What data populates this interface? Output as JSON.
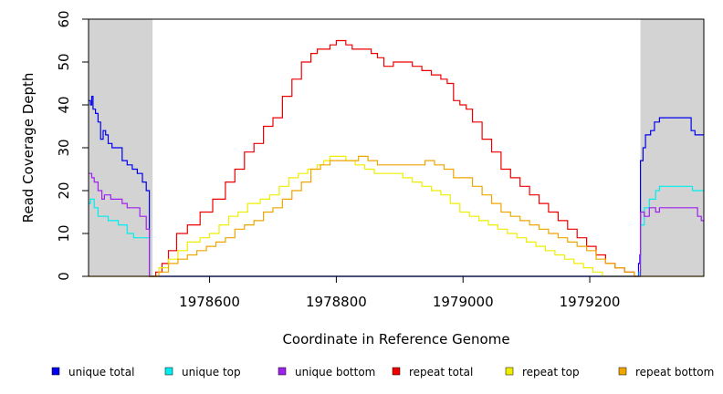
{
  "chart_data": {
    "type": "line",
    "title": "",
    "xlabel": "Coordinate in Reference Genome",
    "ylabel": "Read Coverage Depth",
    "xlim": [
      1978409,
      1979380
    ],
    "ylim": [
      0,
      60
    ],
    "x_ticks": [
      1978600,
      1978800,
      1979000,
      1979200
    ],
    "x_tick_labels": [
      "1978600",
      "1978800",
      "1979000",
      "1979200"
    ],
    "y_ticks": [
      0,
      10,
      20,
      30,
      40,
      50,
      60
    ],
    "y_tick_labels": [
      "0",
      "10",
      "20",
      "30",
      "40",
      "50",
      "60"
    ],
    "shaded_regions": [
      {
        "x0": 1978409,
        "x1": 1978510,
        "color": "#d3d3d3"
      },
      {
        "x0": 1979280,
        "x1": 1979380,
        "color": "#d3d3d3"
      }
    ],
    "series": [
      {
        "name": "unique total",
        "color": "#0000ee",
        "points": [
          [
            1978409,
            41
          ],
          [
            1978412,
            40
          ],
          [
            1978414,
            42
          ],
          [
            1978416,
            39
          ],
          [
            1978420,
            38
          ],
          [
            1978424,
            36
          ],
          [
            1978428,
            32
          ],
          [
            1978432,
            34
          ],
          [
            1978436,
            33
          ],
          [
            1978440,
            31
          ],
          [
            1978446,
            30
          ],
          [
            1978456,
            30
          ],
          [
            1978462,
            27
          ],
          [
            1978470,
            26
          ],
          [
            1978478,
            25
          ],
          [
            1978486,
            24
          ],
          [
            1978494,
            22
          ],
          [
            1978500,
            20
          ],
          [
            1978505,
            0
          ],
          [
            1978509,
            0
          ],
          [
            1979275,
            0
          ],
          [
            1979277,
            3
          ],
          [
            1979279,
            5
          ],
          [
            1979280,
            27
          ],
          [
            1979284,
            30
          ],
          [
            1979288,
            33
          ],
          [
            1979296,
            34
          ],
          [
            1979302,
            36
          ],
          [
            1979310,
            37
          ],
          [
            1979356,
            37
          ],
          [
            1979360,
            34
          ],
          [
            1979366,
            33
          ],
          [
            1979380,
            33
          ]
        ]
      },
      {
        "name": "unique top",
        "color": "#00eeee",
        "points": [
          [
            1978409,
            17
          ],
          [
            1978412,
            18
          ],
          [
            1978418,
            16
          ],
          [
            1978424,
            14
          ],
          [
            1978440,
            13
          ],
          [
            1978456,
            12
          ],
          [
            1978470,
            10
          ],
          [
            1978480,
            9
          ],
          [
            1978500,
            9
          ],
          [
            1978505,
            0
          ],
          [
            1978509,
            0
          ],
          [
            1979276,
            0
          ],
          [
            1979278,
            1
          ],
          [
            1979280,
            12
          ],
          [
            1979286,
            16
          ],
          [
            1979294,
            18
          ],
          [
            1979304,
            20
          ],
          [
            1979310,
            21
          ],
          [
            1979356,
            21
          ],
          [
            1979362,
            20
          ],
          [
            1979380,
            20
          ]
        ]
      },
      {
        "name": "unique bottom",
        "color": "#a020f0",
        "points": [
          [
            1978409,
            24
          ],
          [
            1978414,
            23
          ],
          [
            1978418,
            22
          ],
          [
            1978424,
            20
          ],
          [
            1978430,
            18
          ],
          [
            1978434,
            19
          ],
          [
            1978444,
            18
          ],
          [
            1978462,
            17
          ],
          [
            1978470,
            16
          ],
          [
            1978480,
            16
          ],
          [
            1978490,
            14
          ],
          [
            1978500,
            11
          ],
          [
            1978505,
            0
          ],
          [
            1978509,
            0
          ],
          [
            1979276,
            0
          ],
          [
            1979280,
            15
          ],
          [
            1979286,
            14
          ],
          [
            1979294,
            16
          ],
          [
            1979304,
            15
          ],
          [
            1979310,
            16
          ],
          [
            1979362,
            16
          ],
          [
            1979370,
            14
          ],
          [
            1979376,
            13
          ],
          [
            1979380,
            13
          ]
        ]
      },
      {
        "name": "repeat total",
        "color": "#ee0000",
        "points": [
          [
            1978505,
            0
          ],
          [
            1978515,
            1
          ],
          [
            1978525,
            3
          ],
          [
            1978535,
            6
          ],
          [
            1978548,
            10
          ],
          [
            1978565,
            12
          ],
          [
            1978585,
            15
          ],
          [
            1978605,
            18
          ],
          [
            1978625,
            22
          ],
          [
            1978640,
            25
          ],
          [
            1978655,
            29
          ],
          [
            1978670,
            31
          ],
          [
            1978685,
            35
          ],
          [
            1978700,
            37
          ],
          [
            1978715,
            42
          ],
          [
            1978730,
            46
          ],
          [
            1978745,
            50
          ],
          [
            1978760,
            52
          ],
          [
            1978770,
            53
          ],
          [
            1978790,
            54
          ],
          [
            1978800,
            55
          ],
          [
            1978815,
            54
          ],
          [
            1978825,
            53
          ],
          [
            1978840,
            53
          ],
          [
            1978855,
            52
          ],
          [
            1978865,
            51
          ],
          [
            1978875,
            49
          ],
          [
            1978890,
            50
          ],
          [
            1978905,
            50
          ],
          [
            1978920,
            49
          ],
          [
            1978935,
            48
          ],
          [
            1978950,
            47
          ],
          [
            1978965,
            46
          ],
          [
            1978975,
            45
          ],
          [
            1978985,
            41
          ],
          [
            1978995,
            40
          ],
          [
            1979005,
            39
          ],
          [
            1979015,
            36
          ],
          [
            1979030,
            32
          ],
          [
            1979045,
            29
          ],
          [
            1979060,
            25
          ],
          [
            1979075,
            23
          ],
          [
            1979090,
            21
          ],
          [
            1979105,
            19
          ],
          [
            1979120,
            17
          ],
          [
            1979135,
            15
          ],
          [
            1979150,
            13
          ],
          [
            1979165,
            11
          ],
          [
            1979180,
            9
          ],
          [
            1979195,
            7
          ],
          [
            1979210,
            5
          ],
          [
            1979225,
            3
          ],
          [
            1979240,
            2
          ],
          [
            1979255,
            1
          ],
          [
            1979270,
            0
          ],
          [
            1979275,
            0
          ]
        ]
      },
      {
        "name": "repeat top",
        "color": "#eeee00",
        "points": [
          [
            1978505,
            0
          ],
          [
            1978520,
            2
          ],
          [
            1978535,
            4
          ],
          [
            1978550,
            6
          ],
          [
            1978565,
            8
          ],
          [
            1978585,
            9
          ],
          [
            1978600,
            10
          ],
          [
            1978615,
            12
          ],
          [
            1978630,
            14
          ],
          [
            1978645,
            15
          ],
          [
            1978660,
            17
          ],
          [
            1978680,
            18
          ],
          [
            1978695,
            19
          ],
          [
            1978710,
            21
          ],
          [
            1978725,
            23
          ],
          [
            1978740,
            24
          ],
          [
            1978755,
            25
          ],
          [
            1978770,
            26
          ],
          [
            1978780,
            27
          ],
          [
            1978790,
            28
          ],
          [
            1978800,
            28
          ],
          [
            1978815,
            27
          ],
          [
            1978830,
            26
          ],
          [
            1978845,
            25
          ],
          [
            1978860,
            24
          ],
          [
            1978875,
            24
          ],
          [
            1978890,
            24
          ],
          [
            1978905,
            23
          ],
          [
            1978920,
            22
          ],
          [
            1978935,
            21
          ],
          [
            1978950,
            20
          ],
          [
            1978965,
            19
          ],
          [
            1978980,
            17
          ],
          [
            1978995,
            15
          ],
          [
            1979010,
            14
          ],
          [
            1979025,
            13
          ],
          [
            1979040,
            12
          ],
          [
            1979055,
            11
          ],
          [
            1979070,
            10
          ],
          [
            1979085,
            9
          ],
          [
            1979100,
            8
          ],
          [
            1979115,
            7
          ],
          [
            1979130,
            6
          ],
          [
            1979145,
            5
          ],
          [
            1979160,
            4
          ],
          [
            1979175,
            3
          ],
          [
            1979190,
            2
          ],
          [
            1979205,
            1
          ],
          [
            1979220,
            0
          ],
          [
            1979275,
            0
          ]
        ]
      },
      {
        "name": "repeat bottom",
        "color": "#eea500",
        "points": [
          [
            1978409,
            0
          ],
          [
            1978505,
            0
          ],
          [
            1978520,
            1
          ],
          [
            1978535,
            3
          ],
          [
            1978550,
            4
          ],
          [
            1978565,
            5
          ],
          [
            1978580,
            6
          ],
          [
            1978595,
            7
          ],
          [
            1978610,
            8
          ],
          [
            1978625,
            9
          ],
          [
            1978640,
            11
          ],
          [
            1978655,
            12
          ],
          [
            1978670,
            13
          ],
          [
            1978685,
            15
          ],
          [
            1978700,
            16
          ],
          [
            1978715,
            18
          ],
          [
            1978730,
            20
          ],
          [
            1978745,
            22
          ],
          [
            1978760,
            25
          ],
          [
            1978775,
            26
          ],
          [
            1978790,
            27
          ],
          [
            1978805,
            27
          ],
          [
            1978820,
            27
          ],
          [
            1978835,
            28
          ],
          [
            1978850,
            27
          ],
          [
            1978865,
            26
          ],
          [
            1978880,
            26
          ],
          [
            1978895,
            26
          ],
          [
            1978910,
            26
          ],
          [
            1978925,
            26
          ],
          [
            1978940,
            27
          ],
          [
            1978955,
            26
          ],
          [
            1978970,
            25
          ],
          [
            1978985,
            23
          ],
          [
            1979000,
            23
          ],
          [
            1979015,
            21
          ],
          [
            1979030,
            19
          ],
          [
            1979045,
            17
          ],
          [
            1979060,
            15
          ],
          [
            1979075,
            14
          ],
          [
            1979090,
            13
          ],
          [
            1979105,
            12
          ],
          [
            1979120,
            11
          ],
          [
            1979135,
            10
          ],
          [
            1979150,
            9
          ],
          [
            1979165,
            8
          ],
          [
            1979180,
            7
          ],
          [
            1979195,
            6
          ],
          [
            1979210,
            4
          ],
          [
            1979225,
            3
          ],
          [
            1979240,
            2
          ],
          [
            1979255,
            1
          ],
          [
            1979270,
            0
          ],
          [
            1979380,
            0
          ]
        ]
      }
    ],
    "legend": {
      "placement": "bottom",
      "entries": [
        {
          "label": "unique total",
          "color": "#0000ee"
        },
        {
          "label": "unique top",
          "color": "#00eeee"
        },
        {
          "label": "unique bottom",
          "color": "#a020f0"
        },
        {
          "label": "repeat total",
          "color": "#ee0000"
        },
        {
          "label": "repeat top",
          "color": "#eeee00"
        },
        {
          "label": "repeat bottom",
          "color": "#eea500"
        }
      ]
    }
  }
}
